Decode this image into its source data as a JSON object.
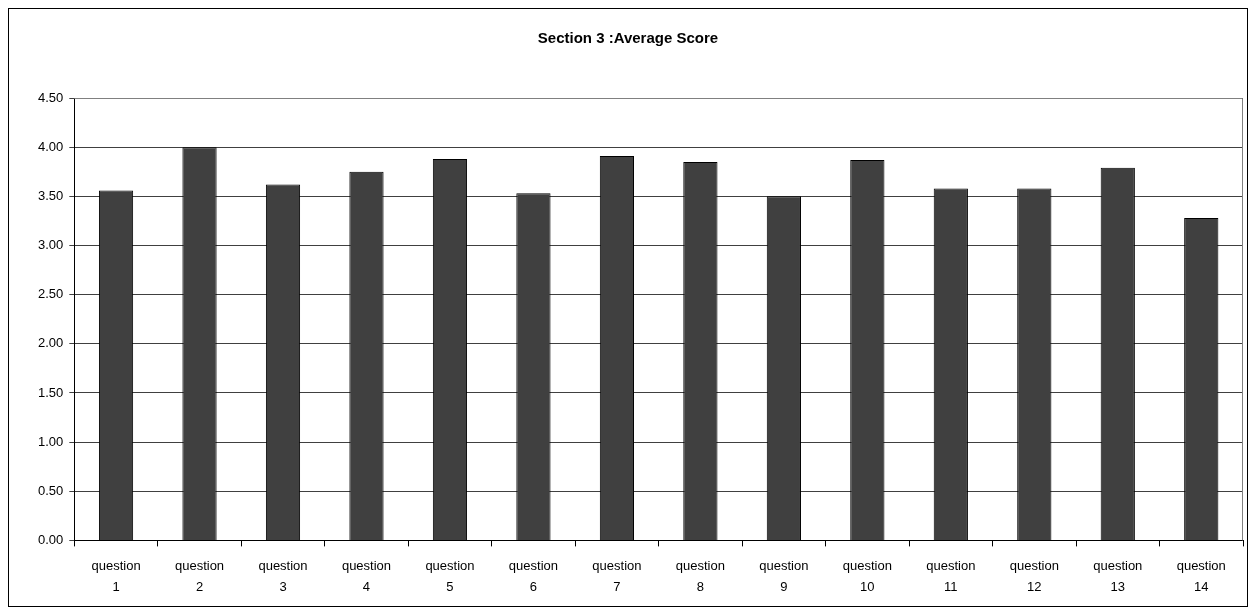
{
  "chart_data": {
    "type": "bar",
    "title": "Section 3 :Average Score",
    "categories": [
      "question 1",
      "question 2",
      "question 3",
      "question 4",
      "question 5",
      "question 6",
      "question 7",
      "question 8",
      "question 9",
      "question 10",
      "question 11",
      "question 12",
      "question 13",
      "question 14"
    ],
    "values": [
      3.56,
      4.0,
      3.62,
      3.75,
      3.88,
      3.53,
      3.91,
      3.85,
      3.5,
      3.87,
      3.58,
      3.58,
      3.79,
      3.28
    ],
    "color": "#404040",
    "ylim": [
      0,
      4.5
    ],
    "yticks": [
      {
        "value": 0,
        "label": "0.00"
      },
      {
        "value": 0.5,
        "label": "0.50"
      },
      {
        "value": 1,
        "label": "1.00"
      },
      {
        "value": 1.5,
        "label": "1.50"
      },
      {
        "value": 2,
        "label": "2.00"
      },
      {
        "value": 2.5,
        "label": "2.50"
      },
      {
        "value": 3,
        "label": "3.00"
      },
      {
        "value": 3.5,
        "label": "3.50"
      },
      {
        "value": 4,
        "label": "4.00"
      },
      {
        "value": 4.5,
        "label": "4.50"
      }
    ],
    "grid": "y"
  }
}
